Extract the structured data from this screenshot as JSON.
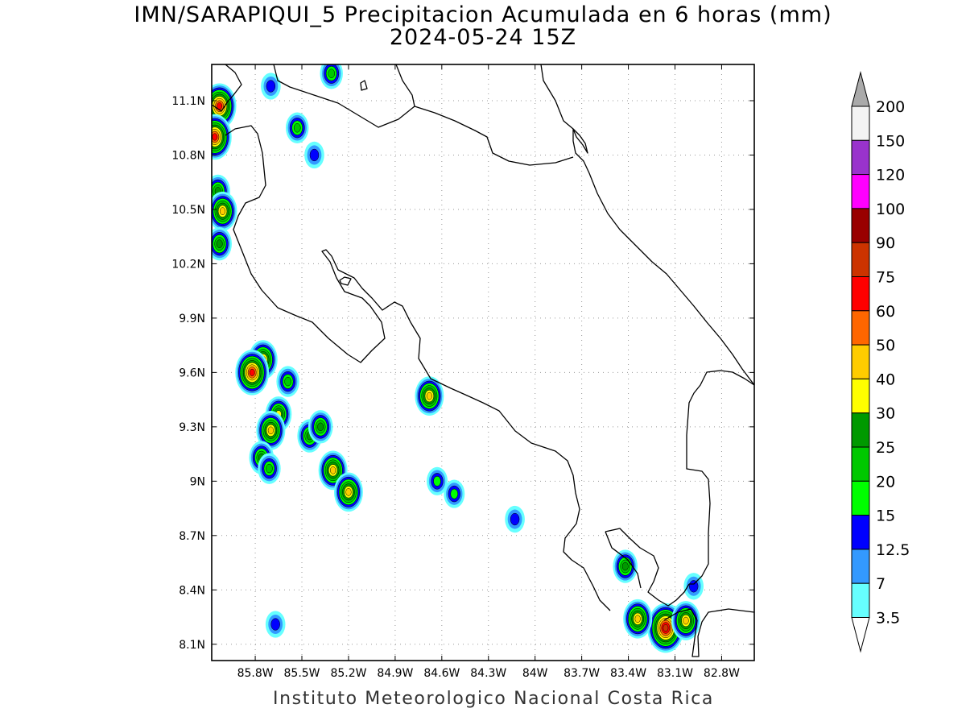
{
  "title": "IMN/SARAPIQUI_5 Precipitacion Acumulada en 6 horas (mm)",
  "subtitle": "2024-05-24 15Z",
  "footer": "Instituto Meteorologico Nacional Costa Rica",
  "map": {
    "lon_range": [
      -86.08,
      -82.59
    ],
    "lat_range": [
      8.01,
      11.3
    ],
    "lat_ticks": [
      {
        "value": 11.1,
        "label": "11.1N"
      },
      {
        "value": 10.8,
        "label": "10.8N"
      },
      {
        "value": 10.5,
        "label": "10.5N"
      },
      {
        "value": 10.2,
        "label": "10.2N"
      },
      {
        "value": 9.9,
        "label": "9.9N"
      },
      {
        "value": 9.6,
        "label": "9.6N"
      },
      {
        "value": 9.3,
        "label": "9.3N"
      },
      {
        "value": 9.0,
        "label": "9N"
      },
      {
        "value": 8.7,
        "label": "8.7N"
      },
      {
        "value": 8.4,
        "label": "8.4N"
      },
      {
        "value": 8.1,
        "label": "8.1N"
      }
    ],
    "lon_ticks": [
      {
        "value": -85.8,
        "label": "85.8W"
      },
      {
        "value": -85.5,
        "label": "85.5W"
      },
      {
        "value": -85.2,
        "label": "85.2W"
      },
      {
        "value": -84.9,
        "label": "84.9W"
      },
      {
        "value": -84.6,
        "label": "84.6W"
      },
      {
        "value": -84.3,
        "label": "84.3W"
      },
      {
        "value": -84.0,
        "label": "84W"
      },
      {
        "value": -83.7,
        "label": "83.7W"
      },
      {
        "value": -83.4,
        "label": "83.4W"
      },
      {
        "value": -83.1,
        "label": "83.1W"
      },
      {
        "value": -82.8,
        "label": "82.8W"
      }
    ],
    "grid": "dotted"
  },
  "colorbar": {
    "levels": [
      "200",
      "150",
      "120",
      "100",
      "90",
      "75",
      "60",
      "50",
      "40",
      "30",
      "25",
      "20",
      "15",
      "12.5",
      "7",
      "3.5"
    ],
    "colors": [
      "#f3f3f3",
      "#9933cc",
      "#ff00ff",
      "#990000",
      "#cc3300",
      "#ff0000",
      "#ff6600",
      "#ffcc00",
      "#ffff00",
      "#009900",
      "#00c800",
      "#00ff00",
      "#0000ff",
      "#3399ff",
      "#66ffff"
    ],
    "over_color": "#aaaaaa",
    "under_color": "#ffffff"
  },
  "precip_cells": [
    {
      "lon": -86.03,
      "lat": 11.07,
      "peak_mm": 60
    },
    {
      "lon": -86.06,
      "lat": 10.9,
      "peak_mm": 60
    },
    {
      "lon": -86.04,
      "lat": 10.6,
      "peak_mm": 25
    },
    {
      "lon": -86.01,
      "lat": 10.49,
      "peak_mm": 40
    },
    {
      "lon": -86.03,
      "lat": 10.31,
      "peak_mm": 25
    },
    {
      "lon": -85.7,
      "lat": 11.18,
      "peak_mm": 12.5
    },
    {
      "lon": -85.53,
      "lat": 10.95,
      "peak_mm": 20
    },
    {
      "lon": -85.42,
      "lat": 10.8,
      "peak_mm": 12.5
    },
    {
      "lon": -85.31,
      "lat": 11.25,
      "peak_mm": 20
    },
    {
      "lon": -85.75,
      "lat": 9.67,
      "peak_mm": 40
    },
    {
      "lon": -85.82,
      "lat": 9.6,
      "peak_mm": 60
    },
    {
      "lon": -85.65,
      "lat": 9.37,
      "peak_mm": 30
    },
    {
      "lon": -85.7,
      "lat": 9.28,
      "peak_mm": 40
    },
    {
      "lon": -85.59,
      "lat": 9.55,
      "peak_mm": 20
    },
    {
      "lon": -85.45,
      "lat": 9.25,
      "peak_mm": 25
    },
    {
      "lon": -85.38,
      "lat": 9.3,
      "peak_mm": 25
    },
    {
      "lon": -85.3,
      "lat": 9.06,
      "peak_mm": 40
    },
    {
      "lon": -85.2,
      "lat": 8.94,
      "peak_mm": 40
    },
    {
      "lon": -85.76,
      "lat": 9.13,
      "peak_mm": 25
    },
    {
      "lon": -85.71,
      "lat": 9.07,
      "peak_mm": 20
    },
    {
      "lon": -84.68,
      "lat": 9.47,
      "peak_mm": 40
    },
    {
      "lon": -84.63,
      "lat": 9.0,
      "peak_mm": 15
    },
    {
      "lon": -84.52,
      "lat": 8.93,
      "peak_mm": 15
    },
    {
      "lon": -84.13,
      "lat": 8.79,
      "peak_mm": 12.5
    },
    {
      "lon": -83.42,
      "lat": 8.53,
      "peak_mm": 25
    },
    {
      "lon": -83.16,
      "lat": 8.19,
      "peak_mm": 75
    },
    {
      "lon": -83.34,
      "lat": 8.24,
      "peak_mm": 40
    },
    {
      "lon": -83.03,
      "lat": 8.23,
      "peak_mm": 40
    },
    {
      "lon": -82.98,
      "lat": 8.42,
      "peak_mm": 12.5
    },
    {
      "lon": -85.67,
      "lat": 8.21,
      "peak_mm": 12.5
    }
  ]
}
